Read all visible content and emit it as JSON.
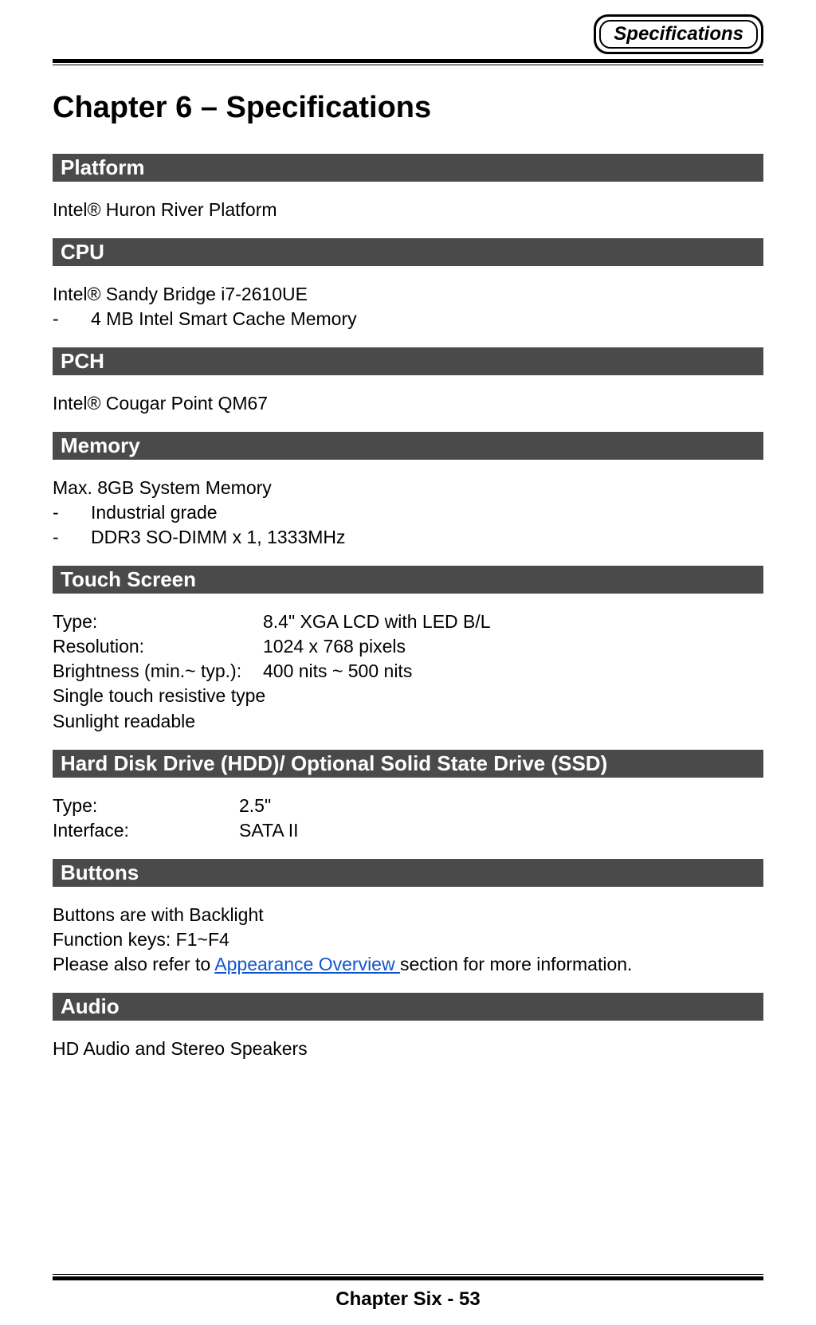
{
  "header": {
    "badge": "Specifications"
  },
  "title": "Chapter 6 – Specifications",
  "sections": {
    "platform": {
      "heading": "Platform",
      "lines": [
        "Intel® Huron River Platform"
      ]
    },
    "cpu": {
      "heading": "CPU",
      "lead": "Intel® Sandy Bridge i7-2610UE",
      "bullets": [
        "4 MB Intel Smart Cache Memory"
      ]
    },
    "pch": {
      "heading": "PCH",
      "lines": [
        "Intel® Cougar Point QM67"
      ]
    },
    "memory": {
      "heading": "Memory",
      "lead": "Max. 8GB System Memory",
      "bullets": [
        "Industrial grade",
        "DDR3 SO-DIMM x 1, 1333MHz"
      ]
    },
    "touch": {
      "heading": "Touch Screen",
      "rows": [
        {
          "label": "Type:",
          "value": "8.4\" XGA LCD with LED B/L",
          "label_width": 264
        },
        {
          "label": "Resolution:",
          "value": "1024 x 768 pixels",
          "label_width": 264
        },
        {
          "label": "Brightness (min.~ typ.):",
          "value": "400 nits ~ 500 nits",
          "label_width": 264
        }
      ],
      "extra": [
        "Single touch resistive type",
        "Sunlight readable"
      ]
    },
    "hdd": {
      "heading": "Hard Disk Drive (HDD)/ Optional Solid State Drive (SSD)",
      "rows": [
        {
          "label": "Type:",
          "value": "2.5\"",
          "label_width": 234
        },
        {
          "label": "Interface:",
          "value": "SATA II",
          "label_width": 234
        }
      ]
    },
    "buttons": {
      "heading": "Buttons",
      "lines": [
        "Buttons are with Backlight",
        "Function keys: F1~F4"
      ],
      "link_line": {
        "before": "Please also refer to ",
        "link": "Appearance Overview ",
        "after": "section for more information."
      }
    },
    "audio": {
      "heading": "Audio",
      "lines": [
        "HD Audio and Stereo Speakers"
      ]
    }
  },
  "footer": "Chapter Six - 53",
  "colors": {
    "section_bar_bg": "#4a4a4a",
    "section_bar_fg": "#ffffff",
    "link": "#1155cc",
    "text": "#000000",
    "page_bg": "#ffffff"
  }
}
